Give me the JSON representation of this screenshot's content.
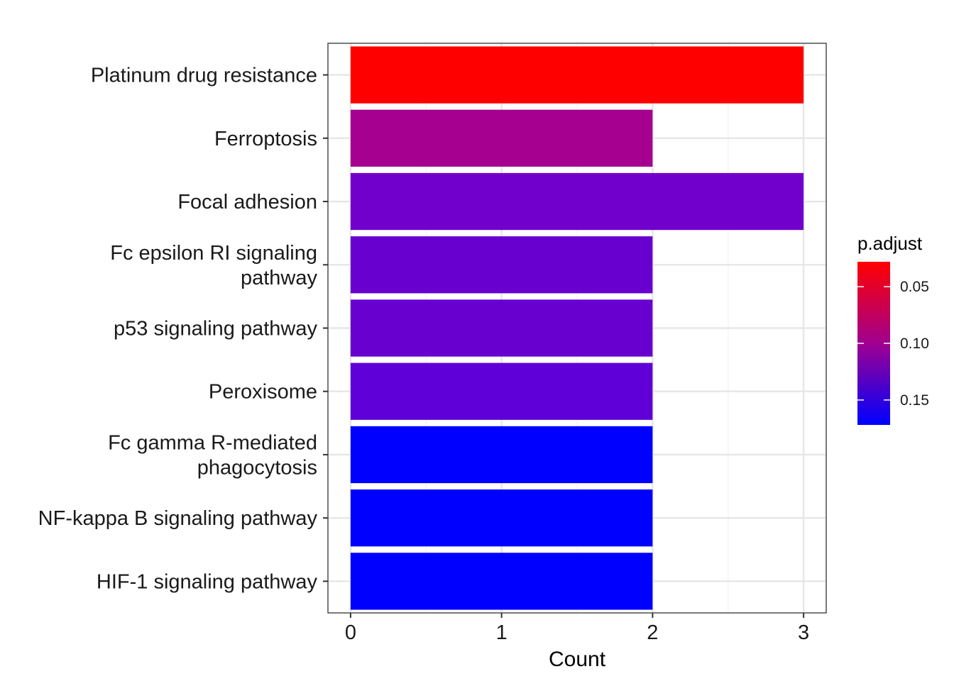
{
  "chart_data": {
    "type": "bar",
    "orientation": "horizontal",
    "categories": [
      "Platinum drug resistance",
      "Ferroptosis",
      "Focal adhesion",
      "Fc epsilon RI signaling pathway",
      "p53 signaling pathway",
      "Peroxisome",
      "Fc gamma R-mediated phagocytosis",
      "NF-kappa B signaling pathway",
      "HIF-1 signaling pathway"
    ],
    "category_lines": [
      [
        "Platinum drug resistance"
      ],
      [
        "Ferroptosis"
      ],
      [
        "Focal adhesion"
      ],
      [
        "Fc epsilon RI signaling",
        "pathway"
      ],
      [
        "p53 signaling pathway"
      ],
      [
        "Peroxisome"
      ],
      [
        "Fc gamma R-mediated",
        "phagocytosis"
      ],
      [
        "NF-kappa B signaling pathway"
      ],
      [
        "HIF-1 signaling pathway"
      ]
    ],
    "values": [
      3,
      2,
      3,
      2,
      2,
      2,
      2,
      2,
      2
    ],
    "colors": [
      "#ff0000",
      "#a5008f",
      "#7100cc",
      "#6800d0",
      "#6800d0",
      "#6000d8",
      "#0000ff",
      "#0000ff",
      "#0000ff"
    ],
    "xlabel": "Count",
    "ylabel": "",
    "xlim": [
      -0.15,
      3.15
    ],
    "x_ticks": [
      0,
      1,
      2,
      3
    ],
    "x_tick_labels": [
      "0",
      "1",
      "2",
      "3"
    ],
    "grid": true,
    "legend": {
      "title": "p.adjust",
      "position": "right",
      "low_color": "#ff0000",
      "high_color": "#0000ff",
      "range": [
        0.028,
        0.172
      ],
      "ticks": [
        0.05,
        0.1,
        0.15
      ],
      "tick_labels": [
        "0.05",
        "0.10",
        "0.15"
      ]
    }
  }
}
